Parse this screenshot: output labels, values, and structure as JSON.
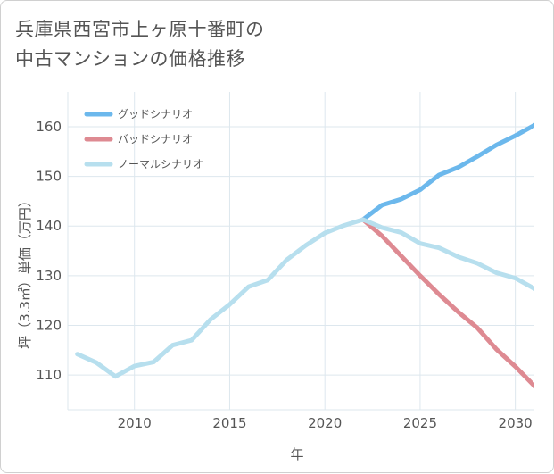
{
  "chart_data": {
    "type": "line",
    "title_lines": [
      "兵庫県西宮市上ヶ原十番町の",
      "中古マンションの価格推移"
    ],
    "xlabel": "年",
    "ylabel": "坪（3.3㎡）単価（万円）",
    "xlim": [
      2006.5,
      2031
    ],
    "ylim": [
      103,
      167
    ],
    "xticks": [
      2010,
      2015,
      2020,
      2025,
      2030
    ],
    "yticks": [
      110,
      120,
      130,
      140,
      150,
      160
    ],
    "grid": true,
    "legend_position": "top-left",
    "series": [
      {
        "name": "グッドシナリオ",
        "color": "#6cb8ec",
        "x": [
          2022,
          2023,
          2024,
          2025,
          2026,
          2027,
          2028,
          2029,
          2030,
          2031
        ],
        "y": [
          141.3,
          144.2,
          145.4,
          147.3,
          150.3,
          151.8,
          154.0,
          156.3,
          158.2,
          160.3
        ]
      },
      {
        "name": "バッドシナリオ",
        "color": "#de8a92",
        "x": [
          2022,
          2023,
          2024,
          2025,
          2026,
          2027,
          2028,
          2029,
          2030,
          2031
        ],
        "y": [
          141.3,
          138.0,
          134.0,
          130.0,
          126.2,
          122.7,
          119.5,
          115.2,
          111.7,
          107.8
        ]
      },
      {
        "name": "ノーマルシナリオ",
        "color": "#b7dfee",
        "x": [
          2007,
          2008,
          2009,
          2010,
          2011,
          2012,
          2013,
          2014,
          2015,
          2016,
          2017,
          2018,
          2019,
          2020,
          2021,
          2022,
          2023,
          2024,
          2025,
          2026,
          2027,
          2028,
          2029,
          2030,
          2031
        ],
        "y": [
          114.2,
          112.5,
          109.7,
          111.8,
          112.6,
          116.0,
          117.0,
          121.2,
          124.2,
          127.8,
          129.1,
          133.2,
          136.1,
          138.6,
          140.1,
          141.3,
          139.7,
          138.7,
          136.5,
          135.6,
          133.8,
          132.5,
          130.6,
          129.5,
          127.4
        ]
      }
    ]
  }
}
